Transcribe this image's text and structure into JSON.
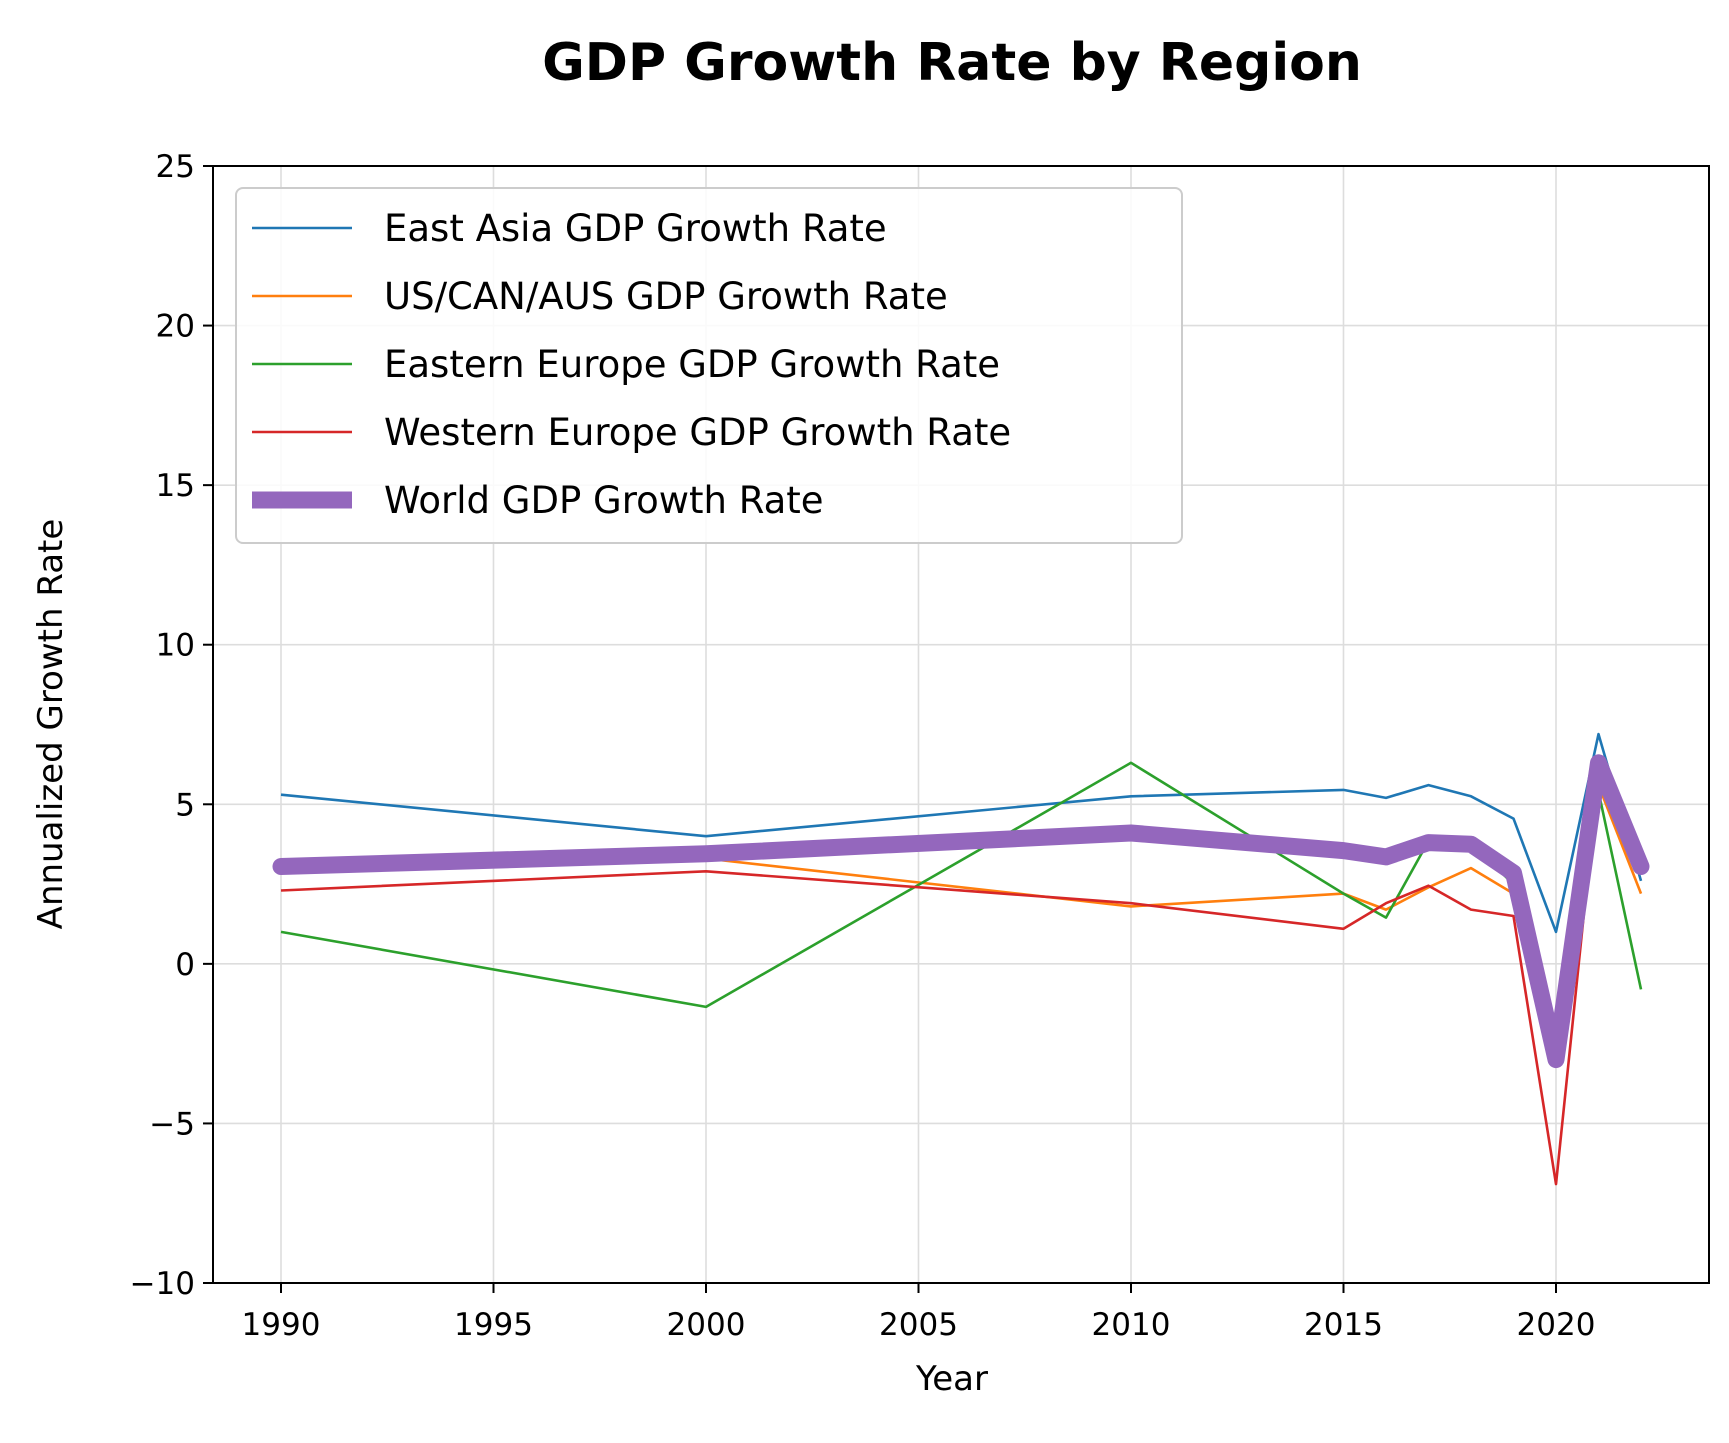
{
  "chart_data": {
    "type": "line",
    "title": "GDP Growth Rate by Region",
    "xlabel": "Year",
    "ylabel": "Annualized Growth Rate",
    "xlim": [
      1988.4,
      2023.6
    ],
    "ylim": [
      -10,
      25
    ],
    "xticks": [
      1990,
      1995,
      2000,
      2005,
      2010,
      2015,
      2020
    ],
    "yticks": [
      -10,
      -5,
      0,
      5,
      10,
      15,
      20,
      25
    ],
    "ytick_labels": [
      "−10",
      "−5",
      "0",
      "5",
      "10",
      "15",
      "20",
      "25"
    ],
    "grid": true,
    "legend_position": "upper-left",
    "x": [
      1990,
      2000,
      2010,
      2015,
      2016,
      2017,
      2018,
      2019,
      2020,
      2021,
      2022
    ],
    "series": [
      {
        "name": "East Asia GDP Growth Rate",
        "color": "#1f77b4",
        "width": "thin",
        "values": [
          5.3,
          4.0,
          5.25,
          5.45,
          5.2,
          5.6,
          5.25,
          4.55,
          1.0,
          7.2,
          2.6
        ]
      },
      {
        "name": "US/CAN/AUS GDP Growth Rate",
        "color": "#ff7f0e",
        "width": "thin",
        "values": [
          3.1,
          3.3,
          1.8,
          2.2,
          1.7,
          2.4,
          3.0,
          2.2,
          -2.8,
          5.6,
          2.2
        ]
      },
      {
        "name": "Eastern Europe GDP Growth Rate",
        "color": "#2ca02c",
        "width": "thin",
        "values": [
          1.0,
          -1.35,
          6.3,
          2.2,
          1.45,
          3.85,
          3.75,
          2.5,
          -1.95,
          5.4,
          -0.8
        ]
      },
      {
        "name": "Western Europe GDP Growth Rate",
        "color": "#d62728",
        "width": "thin",
        "values": [
          2.3,
          2.9,
          1.9,
          1.1,
          1.9,
          2.45,
          1.7,
          1.5,
          -6.9,
          6.0,
          3.3
        ]
      },
      {
        "name": "World GDP Growth Rate",
        "color": "#9467bd",
        "width": "thick",
        "values": [
          3.05,
          3.45,
          4.1,
          3.55,
          3.35,
          3.8,
          3.75,
          2.85,
          -3.0,
          6.3,
          3.05
        ]
      }
    ]
  }
}
